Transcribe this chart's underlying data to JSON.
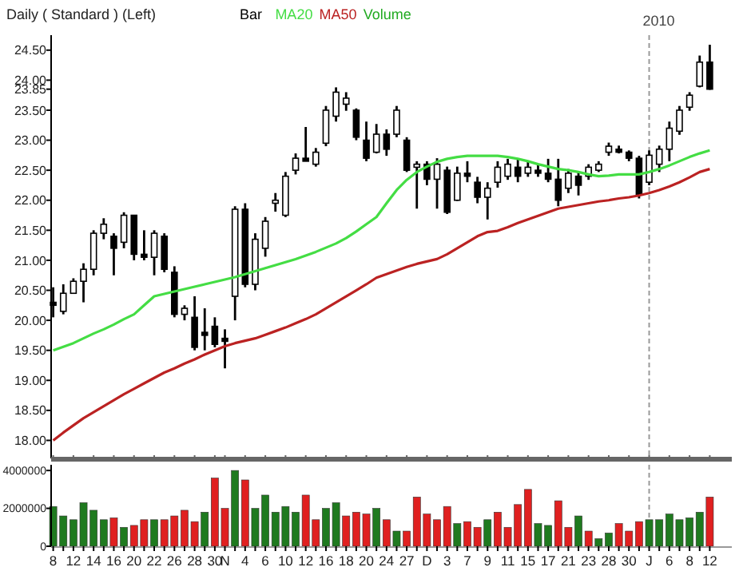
{
  "chart_data": [
    {
      "type": "candlestick",
      "title": "Daily ( Standard )  (Left)",
      "legend": "top",
      "tick_labels": "y",
      "categories": [
        "8",
        null,
        "12",
        null,
        "14",
        null,
        "16",
        null,
        "20",
        null,
        "22",
        null,
        "26",
        null,
        "28",
        null,
        "30",
        "N",
        null,
        "4",
        null,
        "6",
        null,
        "10",
        null,
        "12",
        null,
        "16",
        null,
        "18",
        null,
        "20",
        null,
        "24",
        null,
        "27",
        null,
        "D",
        null,
        "3",
        null,
        "7",
        null,
        "9",
        null,
        "11",
        null,
        "15",
        null,
        "17",
        null,
        "21",
        null,
        "23",
        null,
        "28",
        null,
        "30",
        null,
        "J",
        null,
        "6",
        null,
        "8",
        null,
        "12"
      ],
      "ylim": [
        17.7,
        24.75
      ],
      "yticks": [
        {
          "value": 18,
          "label": "18.00"
        },
        {
          "value": 18.5,
          "label": "18.50"
        },
        {
          "value": 19,
          "label": "19.00"
        },
        {
          "value": 19.5,
          "label": "19.50"
        },
        {
          "value": 20,
          "label": "20.00"
        },
        {
          "value": 20.5,
          "label": "20.50"
        },
        {
          "value": 21,
          "label": "21.00"
        },
        {
          "value": 21.5,
          "label": "21.50"
        },
        {
          "value": 22,
          "label": "22.00"
        },
        {
          "value": 22.5,
          "label": "22.50"
        },
        {
          "value": 23,
          "label": "23.00"
        },
        {
          "value": 23.5,
          "label": "23.50"
        },
        23.85,
        {
          "value": 24,
          "label": "24.00"
        },
        {
          "value": 24.5,
          "label": "24.50"
        }
      ],
      "ref_lines": [
        {
          "axis": "x",
          "value": "J",
          "label": "2010",
          "line_style": "dashed",
          "color": "#999999"
        }
      ],
      "series": [
        {
          "name": "Bar",
          "color": "#000000",
          "ohlc": [
            [
              20.3,
              20.55,
              20.05,
              20.25
            ],
            [
              20.15,
              20.6,
              20.1,
              20.45
            ],
            [
              20.45,
              20.7,
              20.45,
              20.65
            ],
            [
              20.65,
              20.95,
              20.3,
              20.85
            ],
            [
              20.85,
              21.5,
              20.75,
              21.45
            ],
            [
              21.45,
              21.7,
              21.35,
              21.6
            ],
            [
              21.4,
              21.45,
              20.75,
              21.2
            ],
            [
              21.3,
              21.8,
              21.2,
              21.75
            ],
            [
              21.75,
              21.75,
              21.0,
              21.1
            ],
            [
              21.1,
              21.5,
              21.0,
              21.05
            ],
            [
              21.05,
              21.5,
              20.75,
              21.45
            ],
            [
              21.4,
              21.45,
              20.8,
              20.85
            ],
            [
              20.8,
              20.9,
              20.05,
              20.1
            ],
            [
              20.1,
              20.25,
              20.0,
              20.2
            ],
            [
              20.05,
              20.4,
              19.5,
              19.55
            ],
            [
              19.8,
              20.2,
              19.5,
              19.75
            ],
            [
              19.9,
              20.05,
              19.55,
              19.6
            ],
            [
              19.7,
              19.85,
              19.2,
              19.65
            ],
            [
              20.4,
              21.9,
              20.0,
              21.85
            ],
            [
              21.85,
              21.95,
              20.55,
              20.6
            ],
            [
              20.6,
              21.45,
              20.5,
              21.35
            ],
            [
              21.2,
              21.72,
              21.06,
              21.65
            ],
            [
              21.95,
              22.12,
              21.81,
              22.0
            ],
            [
              21.75,
              22.47,
              21.72,
              22.4
            ],
            [
              22.5,
              22.78,
              22.43,
              22.7
            ],
            [
              22.7,
              23.22,
              22.65,
              22.65
            ],
            [
              22.6,
              22.87,
              22.56,
              22.8
            ],
            [
              22.95,
              23.57,
              22.9,
              23.5
            ],
            [
              23.4,
              23.88,
              23.31,
              23.8
            ],
            [
              23.6,
              23.8,
              23.49,
              23.7
            ],
            [
              23.5,
              23.53,
              23.0,
              23.05
            ],
            [
              23.0,
              23.31,
              22.65,
              22.7
            ],
            [
              22.8,
              23.27,
              22.78,
              23.1
            ],
            [
              23.1,
              23.18,
              22.74,
              22.85
            ],
            [
              23.1,
              23.57,
              23.05,
              23.5
            ],
            [
              23.0,
              23.05,
              22.47,
              22.5
            ],
            [
              22.55,
              22.65,
              21.86,
              22.6
            ],
            [
              22.6,
              22.65,
              22.25,
              22.35
            ],
            [
              22.35,
              22.7,
              21.86,
              22.6
            ],
            [
              22.5,
              22.56,
              21.77,
              21.8
            ],
            [
              22.0,
              22.56,
              21.99,
              22.45
            ],
            [
              22.45,
              22.65,
              22.3,
              22.4
            ],
            [
              22.3,
              22.39,
              21.95,
              22.05
            ],
            [
              22.05,
              22.3,
              21.68,
              22.2
            ],
            [
              22.3,
              22.65,
              22.21,
              22.55
            ],
            [
              22.4,
              22.69,
              22.34,
              22.6
            ],
            [
              22.55,
              22.69,
              22.3,
              22.4
            ],
            [
              22.45,
              22.65,
              22.39,
              22.55
            ],
            [
              22.5,
              22.6,
              22.39,
              22.45
            ],
            [
              22.45,
              22.69,
              22.3,
              22.35
            ],
            [
              22.35,
              22.69,
              21.9,
              22.0
            ],
            [
              22.2,
              22.52,
              22.12,
              22.45
            ],
            [
              22.4,
              22.47,
              22.08,
              22.25
            ],
            [
              22.4,
              22.6,
              22.34,
              22.55
            ],
            [
              22.5,
              22.65,
              22.47,
              22.6
            ],
            [
              22.8,
              22.96,
              22.74,
              22.9
            ],
            [
              22.85,
              22.91,
              22.78,
              22.8
            ],
            [
              22.8,
              22.83,
              22.65,
              22.7
            ],
            [
              22.7,
              22.74,
              22.03,
              22.1
            ],
            [
              22.3,
              22.83,
              22.25,
              22.75
            ],
            [
              22.6,
              22.91,
              22.47,
              22.85
            ],
            [
              22.85,
              23.31,
              22.65,
              23.2
            ],
            [
              23.15,
              23.57,
              23.09,
              23.5
            ],
            [
              23.55,
              23.8,
              23.49,
              23.75
            ],
            [
              23.9,
              24.41,
              23.88,
              24.3
            ],
            [
              24.3,
              24.59,
              23.84,
              23.85
            ]
          ]
        },
        {
          "name": "MA20",
          "type": "line",
          "color": "#44dd44",
          "values": [
            19.5,
            19.56,
            19.62,
            19.7,
            19.78,
            19.85,
            19.93,
            20.02,
            20.1,
            20.25,
            20.4,
            20.44,
            20.48,
            20.52,
            20.56,
            20.6,
            20.64,
            20.68,
            20.72,
            20.77,
            20.82,
            20.87,
            20.92,
            20.97,
            21.02,
            21.08,
            21.14,
            21.21,
            21.28,
            21.37,
            21.48,
            21.6,
            21.72,
            21.95,
            22.17,
            22.34,
            22.47,
            22.56,
            22.64,
            22.69,
            22.72,
            22.74,
            22.74,
            22.74,
            22.74,
            22.72,
            22.69,
            22.65,
            22.6,
            22.56,
            22.52,
            22.5,
            22.47,
            22.43,
            22.4,
            22.41,
            22.43,
            22.43,
            22.43,
            22.47,
            22.52,
            22.58,
            22.65,
            22.72,
            22.78,
            22.83
          ]
        },
        {
          "name": "MA50",
          "type": "line",
          "color": "#bb2222",
          "values": [
            18.0,
            18.13,
            18.25,
            18.37,
            18.47,
            18.57,
            18.67,
            18.77,
            18.86,
            18.95,
            19.04,
            19.13,
            19.2,
            19.28,
            19.35,
            19.43,
            19.5,
            19.57,
            19.62,
            19.66,
            19.7,
            19.76,
            19.82,
            19.88,
            19.95,
            20.02,
            20.1,
            20.2,
            20.3,
            20.4,
            20.5,
            20.6,
            20.71,
            20.77,
            20.83,
            20.89,
            20.94,
            20.98,
            21.02,
            21.1,
            21.2,
            21.3,
            21.4,
            21.47,
            21.49,
            21.55,
            21.62,
            21.68,
            21.74,
            21.8,
            21.86,
            21.89,
            21.92,
            21.95,
            21.98,
            22.0,
            22.03,
            22.05,
            22.08,
            22.12,
            22.17,
            22.23,
            22.3,
            22.38,
            22.47,
            22.52
          ]
        }
      ]
    },
    {
      "type": "bar",
      "legend": "top",
      "categories": [
        "8",
        null,
        "12",
        null,
        "14",
        null,
        "16",
        null,
        "20",
        null,
        "22",
        null,
        "26",
        null,
        "28",
        null,
        "30",
        "N",
        null,
        "4",
        null,
        "6",
        null,
        "10",
        null,
        "12",
        null,
        "16",
        null,
        "18",
        null,
        "20",
        null,
        "24",
        null,
        "27",
        null,
        "D",
        null,
        "3",
        null,
        "7",
        null,
        "9",
        null,
        "11",
        null,
        "15",
        null,
        "17",
        null,
        "21",
        null,
        "23",
        null,
        "28",
        null,
        "30",
        null,
        "J",
        null,
        "6",
        null,
        "8",
        null,
        "12"
      ],
      "ylim": [
        0,
        4300000
      ],
      "yticks": [
        0,
        2000000,
        4000000
      ],
      "ref_lines": [
        {
          "axis": "x",
          "value": "J",
          "line_style": "dashed",
          "color": "#999999"
        }
      ],
      "series": [
        {
          "name": "Volume",
          "color": "#22aa22",
          "colors": [
            "#1f7a1f",
            "#1f7a1f",
            "#1f7a1f",
            "#1f7a1f",
            "#1f7a1f",
            "#1f7a1f",
            "#e02020",
            "#1f7a1f",
            "#e02020",
            "#e02020",
            "#1f7a1f",
            "#e02020",
            "#e02020",
            "#e02020",
            "#e02020",
            "#1f7a1f",
            "#e02020",
            "#e02020",
            "#1f7a1f",
            "#e02020",
            "#1f7a1f",
            "#1f7a1f",
            "#1f7a1f",
            "#1f7a1f",
            "#1f7a1f",
            "#e02020",
            "#e02020",
            "#1f7a1f",
            "#1f7a1f",
            "#e02020",
            "#e02020",
            "#e02020",
            "#1f7a1f",
            "#e02020",
            "#1f7a1f",
            "#e02020",
            "#e02020",
            "#e02020",
            "#e02020",
            "#e02020",
            "#1f7a1f",
            "#e02020",
            "#e02020",
            "#1f7a1f",
            "#e02020",
            "#e02020",
            "#e02020",
            "#e02020",
            "#1f7a1f",
            "#1f7a1f",
            "#e02020",
            "#e02020",
            "#1f7a1f",
            "#e02020",
            "#1f7a1f",
            "#1f7a1f",
            "#e02020",
            "#e02020",
            "#e02020",
            "#1f7a1f",
            "#1f7a1f",
            "#1f7a1f",
            "#1f7a1f",
            "#1f7a1f",
            "#1f7a1f",
            "#e02020"
          ],
          "values": [
            2100000,
            1600000,
            1400000,
            2300000,
            1900000,
            1400000,
            1500000,
            1000000,
            1100000,
            1400000,
            1400000,
            1400000,
            1600000,
            1900000,
            1300000,
            1800000,
            3600000,
            2000000,
            4000000,
            3500000,
            2000000,
            2700000,
            1800000,
            2100000,
            1800000,
            2700000,
            1400000,
            2000000,
            2300000,
            1600000,
            1800000,
            1700000,
            2000000,
            1400000,
            800000,
            800000,
            2600000,
            1700000,
            1400000,
            2100000,
            1200000,
            1300000,
            1000000,
            1400000,
            1800000,
            1000000,
            2200000,
            3000000,
            1200000,
            1100000,
            2400000,
            1000000,
            1600000,
            800000,
            400000,
            700000,
            1200000,
            800000,
            1300000,
            1400000,
            1400000,
            1700000,
            1400000,
            1500000,
            1800000,
            2600000
          ]
        }
      ]
    }
  ]
}
